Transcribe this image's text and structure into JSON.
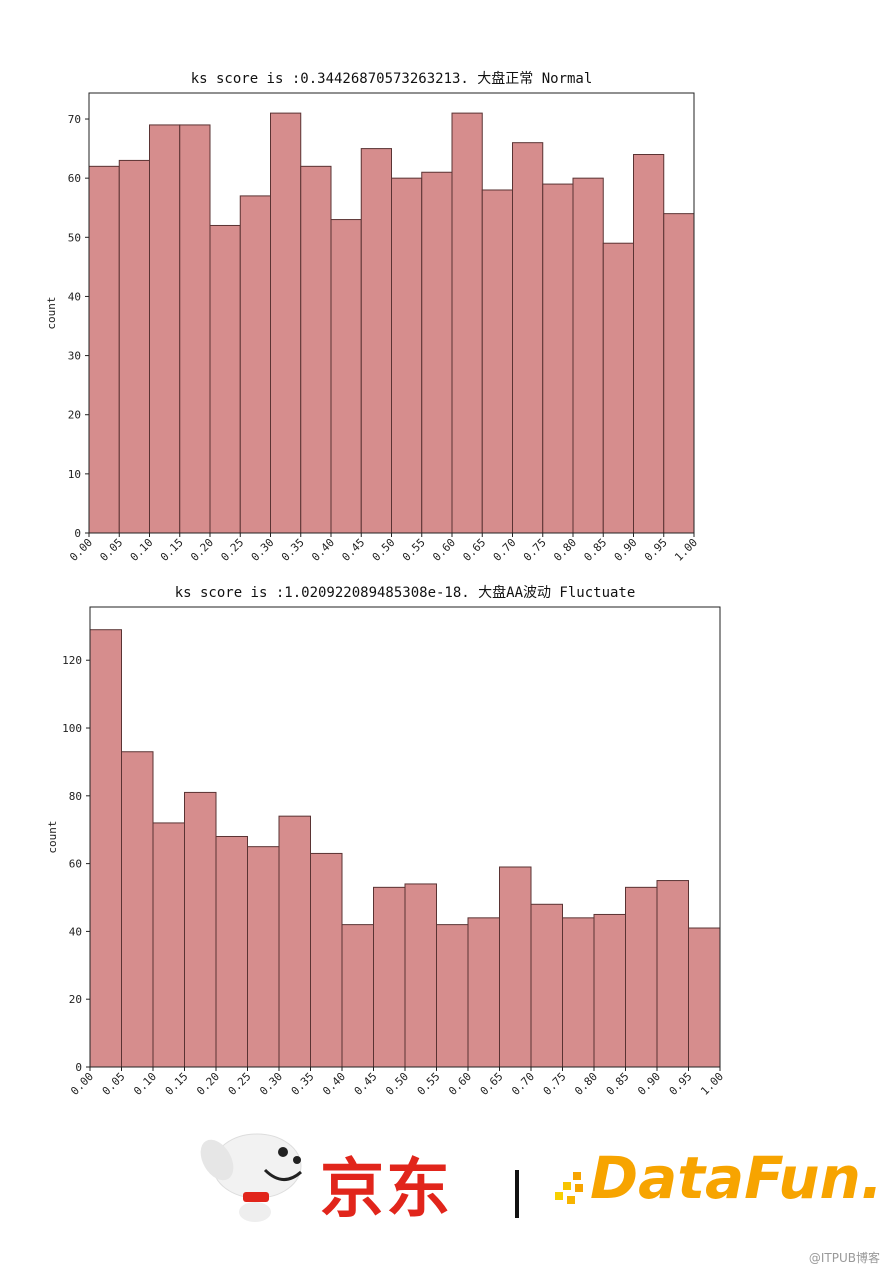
{
  "chart_data": [
    {
      "type": "bar",
      "title": "ks score is :0.3442687057326321З. 大盘正常 Normal",
      "xlabel": "",
      "ylabel": "count",
      "categories": [
        "0.00",
        "0.05",
        "0.10",
        "0.15",
        "0.20",
        "0.25",
        "0.30",
        "0.35",
        "0.40",
        "0.45",
        "0.50",
        "0.55",
        "0.60",
        "0.65",
        "0.70",
        "0.75",
        "0.80",
        "0.85",
        "0.90",
        "0.95"
      ],
      "x_ticks": [
        "0.00",
        "0.05",
        "0.10",
        "0.15",
        "0.20",
        "0.25",
        "0.30",
        "0.35",
        "0.40",
        "0.45",
        "0.50",
        "0.55",
        "0.60",
        "0.65",
        "0.70",
        "0.75",
        "0.80",
        "0.85",
        "0.90",
        "0.95",
        "1.00"
      ],
      "values": [
        62,
        63,
        69,
        69,
        52,
        57,
        71,
        62,
        53,
        65,
        60,
        61,
        71,
        58,
        66,
        59,
        60,
        49,
        64,
        54
      ],
      "y_ticks": [
        0,
        10,
        20,
        30,
        40,
        50,
        60,
        70
      ],
      "ylim": [
        0,
        74.4
      ],
      "xlim": [
        0,
        1
      ],
      "grid": false,
      "bar_color": "#d68d8d",
      "edge_color": "#5a3333"
    },
    {
      "type": "bar",
      "title": "ks score is :1.020922089485308e-18. 大盘AA波动 Fluctuate",
      "xlabel": "",
      "ylabel": "count",
      "categories": [
        "0.00",
        "0.05",
        "0.10",
        "0.15",
        "0.20",
        "0.25",
        "0.30",
        "0.35",
        "0.40",
        "0.45",
        "0.50",
        "0.55",
        "0.60",
        "0.65",
        "0.70",
        "0.75",
        "0.80",
        "0.85",
        "0.90",
        "0.95"
      ],
      "x_ticks": [
        "0.00",
        "0.05",
        "0.10",
        "0.15",
        "0.20",
        "0.25",
        "0.30",
        "0.35",
        "0.40",
        "0.45",
        "0.50",
        "0.55",
        "0.60",
        "0.65",
        "0.70",
        "0.75",
        "0.80",
        "0.85",
        "0.90",
        "0.95",
        "1.00"
      ],
      "values": [
        129,
        93,
        72,
        81,
        68,
        65,
        74,
        63,
        42,
        53,
        54,
        42,
        44,
        59,
        48,
        44,
        45,
        53,
        55,
        41
      ],
      "y_ticks": [
        0,
        20,
        40,
        60,
        80,
        100,
        120
      ],
      "ylim": [
        0,
        135.7
      ],
      "xlim": [
        0,
        1
      ],
      "grid": false,
      "bar_color": "#d68d8d",
      "edge_color": "#5a3333"
    }
  ],
  "footer": {
    "jd_logo_text": "京东",
    "datafun_logo_text": "DataFun.",
    "watermark": "@ITPUB博客"
  }
}
